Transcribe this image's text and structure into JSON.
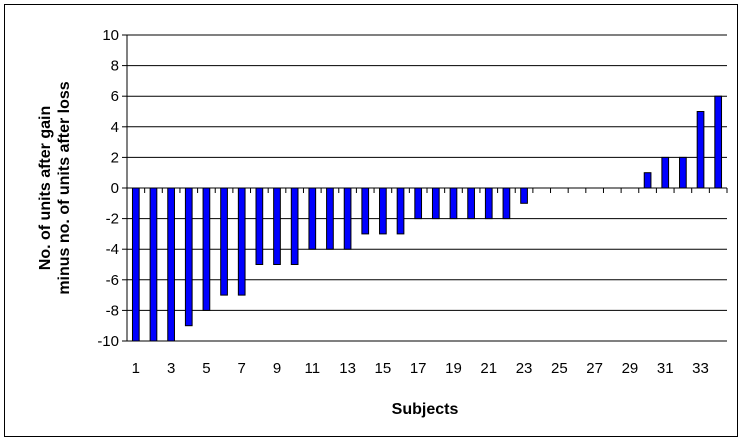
{
  "chart_data": {
    "type": "bar",
    "title": "",
    "xlabel": "Subjects",
    "ylabel_lines": [
      "No. of units after gain",
      "minus no. of units after loss"
    ],
    "ylim": [
      -10,
      10
    ],
    "yticks": [
      -10,
      -8,
      -6,
      -4,
      -2,
      0,
      2,
      4,
      6,
      8,
      10
    ],
    "categories": [
      1,
      2,
      3,
      4,
      5,
      6,
      7,
      8,
      9,
      10,
      11,
      12,
      13,
      14,
      15,
      16,
      17,
      18,
      19,
      20,
      21,
      22,
      23,
      24,
      25,
      26,
      27,
      28,
      29,
      30,
      31,
      32,
      33,
      34
    ],
    "x_tick_labels": [
      "1",
      "3",
      "5",
      "7",
      "9",
      "11",
      "13",
      "15",
      "17",
      "19",
      "21",
      "23",
      "25",
      "27",
      "29",
      "31",
      "33"
    ],
    "values": [
      -10,
      -10,
      -10,
      -9,
      -8,
      -7,
      -7,
      -5,
      -5,
      -5,
      -4,
      -4,
      -4,
      -3,
      -3,
      -3,
      -2,
      -2,
      -2,
      -2,
      -2,
      -2,
      -1,
      0,
      0,
      0,
      0,
      0,
      0,
      1,
      2,
      2,
      5,
      6
    ],
    "bar_color": "#0000ff",
    "grid": true,
    "legend": false
  }
}
